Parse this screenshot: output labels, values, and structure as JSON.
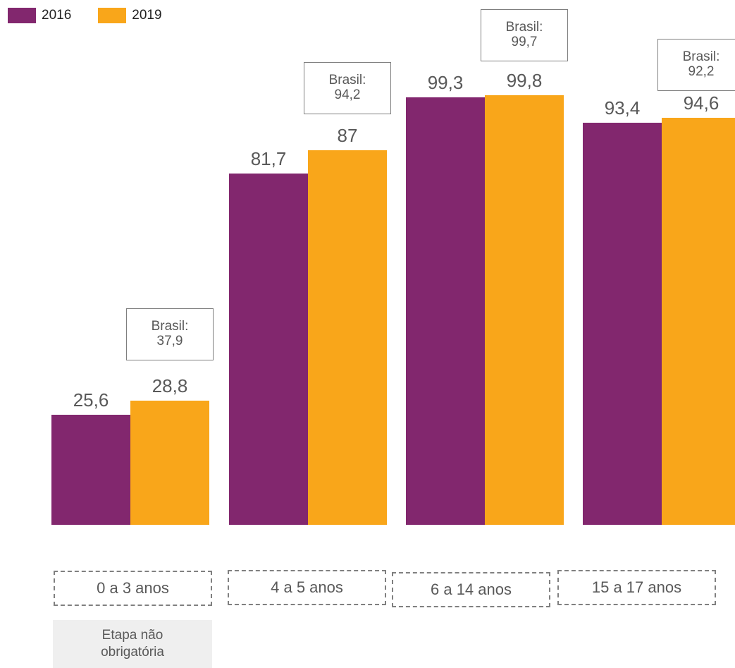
{
  "legend": [
    {
      "label": "2016",
      "color": "#82276e"
    },
    {
      "label": "2019",
      "color": "#f9a61a"
    }
  ],
  "chart_data": {
    "type": "bar",
    "categories": [
      "0 a 3 anos",
      "4 a 5 anos",
      "6 a 14 anos",
      "15 a 17 anos"
    ],
    "series": [
      {
        "name": "2016",
        "color": "#82276e",
        "values": [
          25.6,
          81.7,
          99.3,
          93.4
        ],
        "labels": [
          "25,6",
          "81,7",
          "99,3",
          "93,4"
        ]
      },
      {
        "name": "2019",
        "color": "#f9a61a",
        "values": [
          28.8,
          87,
          99.8,
          94.6
        ],
        "labels": [
          "28,8",
          "87",
          "99,8",
          "94,6"
        ]
      }
    ],
    "brasil_label": "Brasil:",
    "brasil_values": [
      "37,9",
      "94,2",
      "99,7",
      "92,2"
    ],
    "ylim": [
      0,
      100
    ],
    "grid": false,
    "legend_position": "top-left"
  },
  "note": {
    "line1": "Etapa não",
    "line2": "obrigatória"
  }
}
